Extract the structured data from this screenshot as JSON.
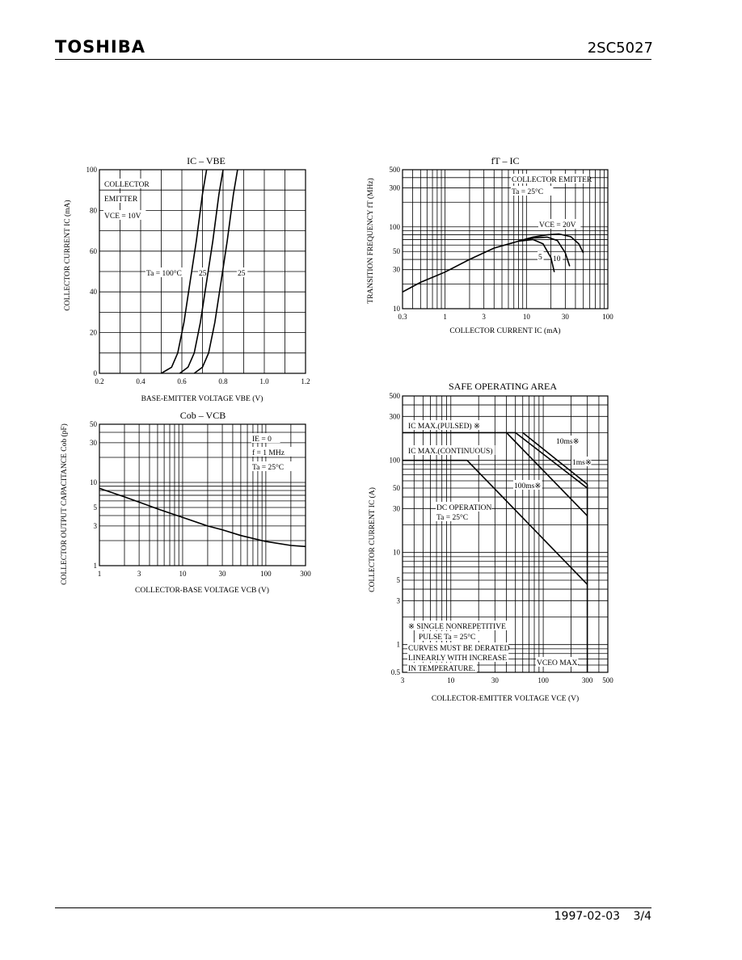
{
  "header": {
    "brand": "TOSHIBA",
    "part_number": "2SC5027"
  },
  "footer": {
    "date": "1997-02-03",
    "page": "3/4"
  },
  "chart_data": [
    {
      "id": "ic-vbe",
      "type": "line",
      "title": "IC – VBE",
      "xlabel": "BASE-EMITTER VOLTAGE  VBE  (V)",
      "ylabel": "COLLECTOR CURRENT  IC  (mA)",
      "xlim": [
        0.2,
        1.2
      ],
      "ylim": [
        0,
        100
      ],
      "xticks": [
        "0.2",
        "0.4",
        "0.6",
        "0.8",
        "1.0",
        "1.2"
      ],
      "yticks": [
        "0",
        "20",
        "40",
        "60",
        "80",
        "100"
      ],
      "annotations": [
        "COLLECTOR",
        "EMITTER",
        "VCE = 10V",
        "Ta = 100°C",
        "25",
        "25"
      ],
      "series": [
        {
          "x": [
            0.5,
            0.55,
            0.58,
            0.61,
            0.64,
            0.67,
            0.7,
            0.72
          ],
          "y": [
            0,
            3,
            10,
            25,
            45,
            65,
            88,
            100
          ]
        },
        {
          "x": [
            0.59,
            0.63,
            0.66,
            0.69,
            0.72,
            0.75,
            0.78,
            0.8
          ],
          "y": [
            0,
            3,
            10,
            25,
            45,
            65,
            88,
            100
          ]
        },
        {
          "x": [
            0.66,
            0.7,
            0.73,
            0.76,
            0.79,
            0.82,
            0.85,
            0.87
          ],
          "y": [
            0,
            3,
            10,
            25,
            45,
            65,
            88,
            100
          ]
        }
      ]
    },
    {
      "id": "ft-ic",
      "type": "line",
      "title": "fT – IC",
      "xlabel": "COLLECTOR CURRENT  IC  (mA)",
      "ylabel": "TRANSITION FREQUENCY  fT  (MHz)",
      "xscale": "log",
      "yscale": "log",
      "xlim": [
        0.3,
        100
      ],
      "ylim": [
        10,
        500
      ],
      "xticks": [
        "0.3",
        "1",
        "3",
        "10",
        "30",
        "100"
      ],
      "yticks": [
        "10",
        "30",
        "50",
        "100",
        "300",
        "500"
      ],
      "annotations": [
        "COLLECTOR EMITTER",
        "Ta = 25°C",
        "VCE = 20V",
        "5",
        "10"
      ],
      "series": [
        {
          "name": "5",
          "x": [
            0.3,
            0.5,
            1,
            2,
            4,
            8,
            12,
            16,
            20,
            22
          ],
          "y": [
            16,
            21,
            28,
            40,
            55,
            67,
            70,
            62,
            42,
            28
          ]
        },
        {
          "name": "10",
          "x": [
            8,
            12,
            18,
            24,
            30,
            34
          ],
          "y": [
            67,
            73,
            75,
            68,
            48,
            33
          ]
        },
        {
          "name": "20",
          "x": [
            8,
            12,
            18,
            25,
            35,
            44,
            50
          ],
          "y": [
            67,
            75,
            80,
            82,
            76,
            62,
            48
          ]
        }
      ]
    },
    {
      "id": "cob-vcb",
      "type": "line",
      "title": "Cob – VCB",
      "xlabel": "COLLECTOR-BASE VOLTAGE  VCB  (V)",
      "ylabel": "COLLECTOR OUTPUT CAPACITANCE  Cob  (pF)",
      "xscale": "log",
      "yscale": "log",
      "xlim": [
        1,
        300
      ],
      "ylim": [
        1,
        50
      ],
      "xticks": [
        "1",
        "3",
        "10",
        "30",
        "100",
        "300"
      ],
      "yticks": [
        "1",
        "3",
        "5",
        "10",
        "30",
        "50"
      ],
      "annotations": [
        "IE = 0",
        "f = 1 MHz",
        "Ta = 25°C"
      ],
      "series": [
        {
          "x": [
            1,
            2,
            3,
            5,
            10,
            20,
            30,
            50,
            100,
            200,
            300
          ],
          "y": [
            8.5,
            6.7,
            5.8,
            4.8,
            3.8,
            3.0,
            2.7,
            2.3,
            1.95,
            1.75,
            1.7
          ]
        }
      ]
    },
    {
      "id": "soa",
      "type": "line",
      "title": "SAFE OPERATING AREA",
      "xlabel": "COLLECTOR-EMITTER VOLTAGE  VCE  (V)",
      "ylabel": "COLLECTOR CURRENT  IC  (A)",
      "xscale": "log",
      "yscale": "log",
      "xlim": [
        3,
        500
      ],
      "ylim": [
        0.5,
        500
      ],
      "xticks": [
        "3",
        "10",
        "30",
        "100",
        "300",
        "500"
      ],
      "yticks": [
        "0.5",
        "1",
        "3",
        "5",
        "10",
        "30",
        "50",
        "100",
        "300",
        "500"
      ],
      "annotations": [
        "IC MAX.(PULSED) ※",
        "IC MAX.(CONTINUOUS)",
        "10ms※",
        "1ms※",
        "100ms※",
        "DC OPERATION",
        "Ta = 25°C",
        "※ SINGLE NONREPETITIVE",
        "PULSE  Ta = 25°C",
        "CURVES MUST BE DERATED",
        "LINEARLY WITH INCREASE",
        "IN TEMPERATURE.",
        "VCEO MAX."
      ],
      "series": [
        {
          "name": "IC MAX.(PULSED)",
          "x": [
            3,
            50
          ],
          "y": [
            200,
            200
          ]
        },
        {
          "name": "IC MAX.(CONTINUOUS)",
          "x": [
            3,
            15
          ],
          "y": [
            100,
            100
          ]
        },
        {
          "name": "DC OPERATION",
          "x": [
            15,
            300
          ],
          "y": [
            100,
            4.5
          ]
        },
        {
          "name": "100ms",
          "x": [
            40,
            300
          ],
          "y": [
            200,
            25
          ]
        },
        {
          "name": "10ms",
          "x": [
            50,
            300
          ],
          "y": [
            200,
            50
          ]
        },
        {
          "name": "1ms",
          "x": [
            60,
            300
          ],
          "y": [
            200,
            55
          ]
        },
        {
          "name": "VCEO MAX.",
          "x": [
            300,
            300
          ],
          "y": [
            55,
            0.5
          ]
        }
      ]
    }
  ]
}
